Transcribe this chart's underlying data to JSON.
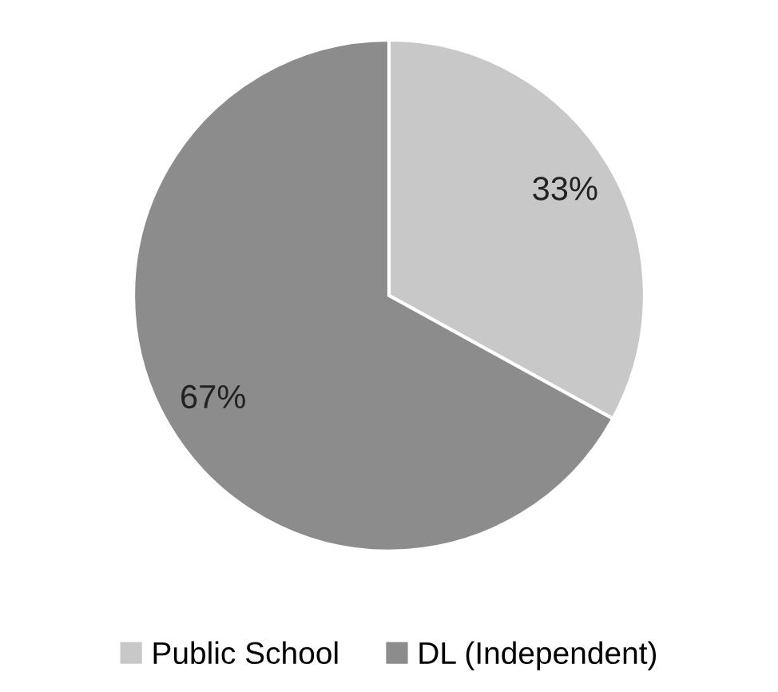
{
  "chart_data": {
    "type": "pie",
    "categories": [
      "Public School",
      "DL (Independent)"
    ],
    "values": [
      33,
      67
    ],
    "value_labels": [
      "33%",
      "67%"
    ],
    "colors": [
      "#c8c8c8",
      "#8c8c8c"
    ],
    "legend": "bottom"
  }
}
